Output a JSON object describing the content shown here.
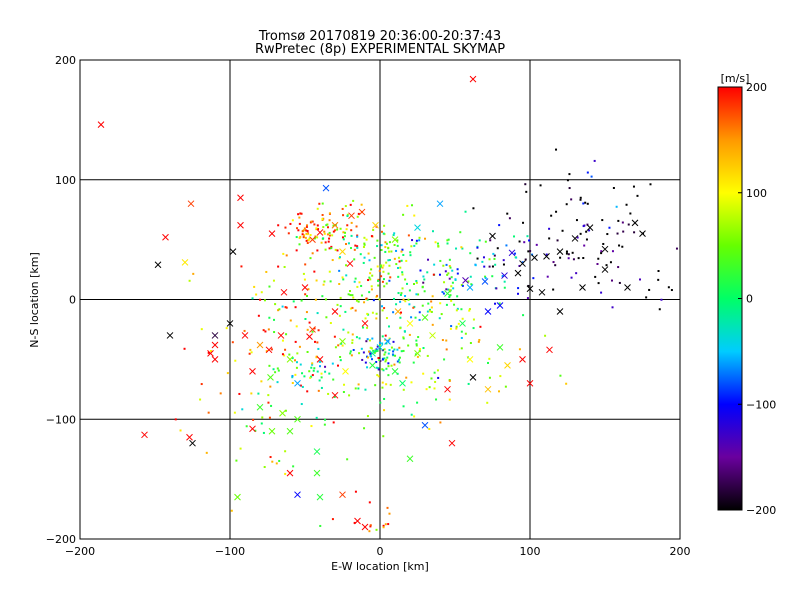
{
  "chart_data": {
    "type": "scatter",
    "title": "Tromsø 20170819 20:36:00-20:37:43",
    "subtitle": "RwPretec (8p) EXPERIMENTAL SKYMAP",
    "xlabel": "E-W location [km]",
    "ylabel": "N-S location [km]",
    "xlim": [
      -200,
      200
    ],
    "ylim": [
      -200,
      200
    ],
    "xticks": [
      -200,
      -100,
      0,
      100,
      200
    ],
    "yticks": [
      -200,
      -100,
      0,
      100,
      200
    ],
    "grid": true,
    "colorbar": {
      "label": "[m/s]",
      "range": [
        -200,
        200
      ],
      "ticks": [
        200,
        100,
        0,
        -100,
        -200
      ],
      "position": "right"
    },
    "markers": {
      "small": "dot",
      "large": "x"
    },
    "value_unit": "m/s",
    "points": [
      [
        -186,
        146,
        200,
        "x"
      ],
      [
        62,
        184,
        200,
        "x"
      ],
      [
        -126,
        80,
        180,
        "x"
      ],
      [
        -93,
        85,
        200,
        "x"
      ],
      [
        -143,
        52,
        200,
        "x"
      ],
      [
        -148,
        29,
        -200,
        "x"
      ],
      [
        -130,
        31,
        110,
        "x"
      ],
      [
        -98,
        40,
        -200,
        "x"
      ],
      [
        -93,
        62,
        200,
        "x"
      ],
      [
        -72,
        55,
        200,
        "x"
      ],
      [
        -36,
        93,
        -80,
        "x"
      ],
      [
        -19,
        70,
        180,
        "x"
      ],
      [
        -40,
        56,
        200,
        "x"
      ],
      [
        -45,
        50,
        180,
        "x"
      ],
      [
        -30,
        62,
        160,
        "x"
      ],
      [
        -12,
        73,
        180,
        "x"
      ],
      [
        -3,
        62,
        120,
        "x"
      ],
      [
        10,
        50,
        60,
        "x"
      ],
      [
        25,
        60,
        -40,
        "x"
      ],
      [
        40,
        80,
        -60,
        "x"
      ],
      [
        75,
        53,
        -200,
        "x"
      ],
      [
        88,
        39,
        -120,
        "x"
      ],
      [
        95,
        30,
        -200,
        "x"
      ],
      [
        100,
        9,
        -200,
        "x"
      ],
      [
        103,
        35,
        -200,
        "x"
      ],
      [
        111,
        36,
        -200,
        "x"
      ],
      [
        130,
        51,
        -200,
        "x"
      ],
      [
        150,
        42,
        -200,
        "x"
      ],
      [
        170,
        64,
        -200,
        "x"
      ],
      [
        165,
        10,
        -200,
        "x"
      ],
      [
        83,
        20,
        -120,
        "x"
      ],
      [
        70,
        15,
        -80,
        "x"
      ],
      [
        60,
        10,
        -60,
        "x"
      ],
      [
        45,
        5,
        20,
        "x"
      ],
      [
        30,
        -15,
        40,
        "x"
      ],
      [
        -73,
        -65,
        40,
        "x"
      ],
      [
        -55,
        -70,
        -60,
        "x"
      ],
      [
        -40,
        -50,
        200,
        "x"
      ],
      [
        -23,
        -60,
        100,
        "x"
      ],
      [
        -30,
        -80,
        200,
        "x"
      ],
      [
        -60,
        -50,
        60,
        "x"
      ],
      [
        -80,
        -90,
        30,
        "x"
      ],
      [
        -72,
        -110,
        50,
        "x"
      ],
      [
        -60,
        -110,
        40,
        "x"
      ],
      [
        -42,
        -127,
        10,
        "x"
      ],
      [
        -42,
        -145,
        30,
        "x"
      ],
      [
        -60,
        -145,
        200,
        "x"
      ],
      [
        -55,
        -163,
        -100,
        "x"
      ],
      [
        -40,
        -165,
        20,
        "x"
      ],
      [
        -25,
        -163,
        180,
        "x"
      ],
      [
        -15,
        -185,
        200,
        "x"
      ],
      [
        -10,
        -190,
        200,
        "x"
      ],
      [
        -125,
        -120,
        -200,
        "x"
      ],
      [
        -127,
        -115,
        200,
        "x"
      ],
      [
        -157,
        -113,
        200,
        "x"
      ],
      [
        -110,
        -50,
        200,
        "x"
      ],
      [
        -113,
        -45,
        200,
        "x"
      ],
      [
        -85,
        -108,
        200,
        "x"
      ],
      [
        -95,
        -165,
        50,
        "x"
      ],
      [
        20,
        -133,
        30,
        "x"
      ],
      [
        30,
        -105,
        -80,
        "x"
      ],
      [
        48,
        -120,
        200,
        "x"
      ],
      [
        85,
        -55,
        120,
        "x"
      ],
      [
        72,
        -75,
        130,
        "x"
      ],
      [
        113,
        -42,
        200,
        "x"
      ],
      [
        62,
        -65,
        -200,
        "x"
      ],
      [
        55,
        -20,
        10,
        "x"
      ],
      [
        72,
        -10,
        -100,
        "x"
      ],
      [
        95,
        -50,
        200,
        "x"
      ],
      [
        80,
        -40,
        30,
        "x"
      ],
      [
        -110,
        -38,
        200,
        "x"
      ],
      [
        -90,
        -30,
        200,
        "x"
      ],
      [
        -80,
        -38,
        150,
        "x"
      ],
      [
        -66,
        -30,
        200,
        "x"
      ],
      [
        -30,
        -10,
        200,
        "x"
      ],
      [
        -10,
        -20,
        200,
        "x"
      ],
      [
        0,
        -40,
        -40,
        "x"
      ],
      [
        5,
        -35,
        -60,
        "x"
      ],
      [
        12,
        -10,
        140,
        "x"
      ],
      [
        20,
        -20,
        100,
        "x"
      ],
      [
        -55,
        -100,
        40,
        "x"
      ],
      [
        -65,
        -95,
        60,
        "x"
      ],
      [
        -85,
        -60,
        200,
        "x"
      ],
      [
        -45,
        -25,
        180,
        "x"
      ],
      [
        -25,
        -35,
        60,
        "x"
      ],
      [
        -140,
        -30,
        -200,
        "x"
      ],
      [
        -100,
        -20,
        -200,
        "x"
      ],
      [
        -110,
        -30,
        -180,
        "x"
      ],
      [
        -5,
        -55,
        20,
        "x"
      ],
      [
        45,
        -75,
        200,
        "x"
      ],
      [
        60,
        -50,
        100,
        "x"
      ],
      [
        100,
        -70,
        200,
        "x"
      ],
      [
        -20,
        30,
        200,
        "x"
      ],
      [
        -50,
        10,
        200,
        "x"
      ],
      [
        -25,
        40,
        120,
        "x"
      ],
      [
        10,
        -60,
        20,
        "x"
      ],
      [
        -5,
        -45,
        -20,
        "x"
      ],
      [
        15,
        -70,
        0,
        "x"
      ],
      [
        25,
        -45,
        60,
        "x"
      ],
      [
        35,
        -30,
        80,
        "x"
      ],
      [
        57,
        16,
        -140,
        "x"
      ],
      [
        80,
        -5,
        -100,
        "x"
      ],
      [
        92,
        22,
        -200,
        "x"
      ],
      [
        108,
        6,
        -200,
        "x"
      ],
      [
        120,
        40,
        -200,
        "x"
      ],
      [
        120,
        -10,
        -200,
        "x"
      ],
      [
        140,
        60,
        -200,
        "x"
      ],
      [
        175,
        55,
        -200,
        "x"
      ],
      [
        150,
        25,
        -200,
        "x"
      ],
      [
        135,
        10,
        -200,
        "x"
      ],
      [
        -64,
        6,
        200,
        "x"
      ],
      [
        -47,
        -31,
        200,
        "x"
      ],
      [
        -74,
        -42,
        200,
        "x"
      ]
    ]
  }
}
